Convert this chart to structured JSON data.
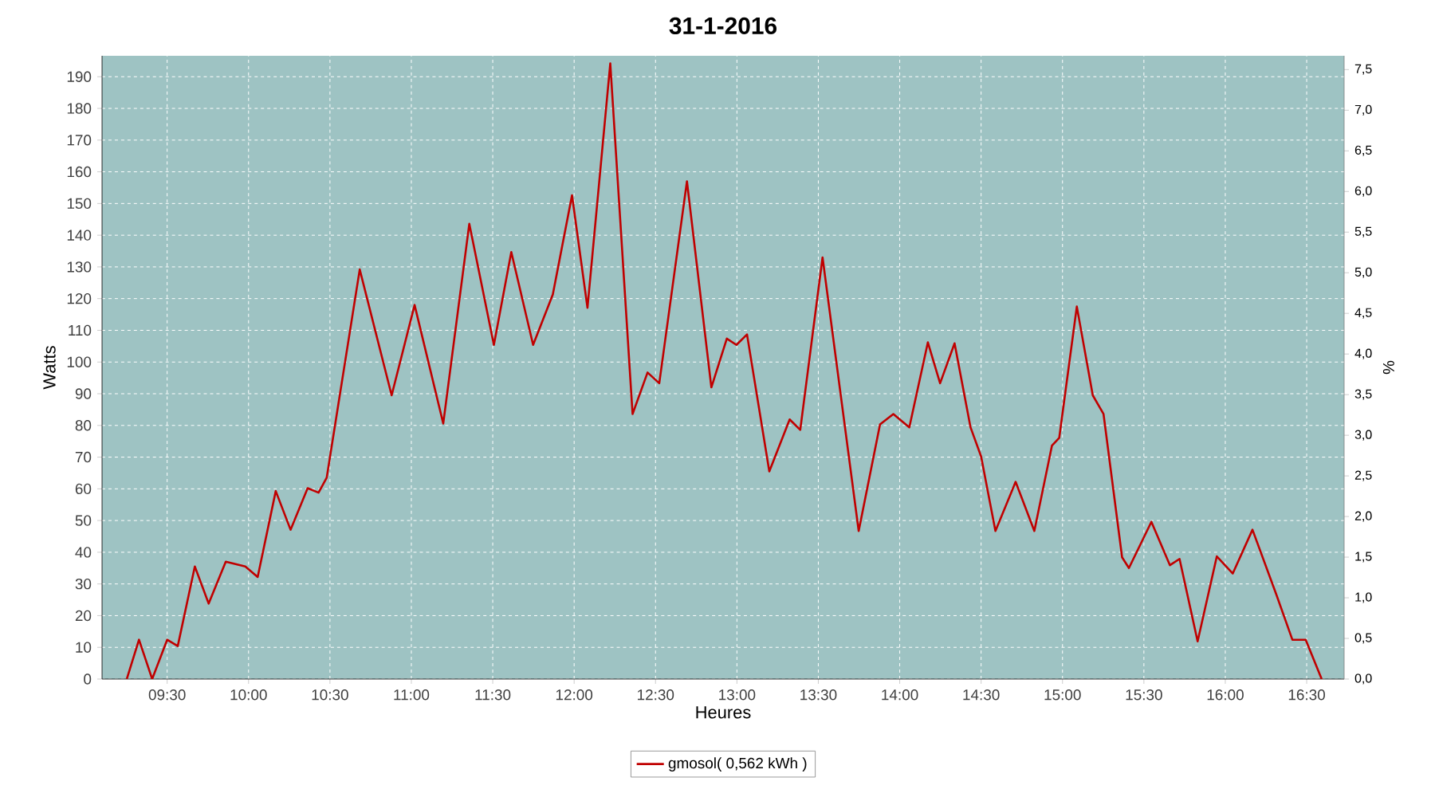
{
  "chart_data": {
    "type": "line",
    "title": "31-1-2016",
    "xlabel": "Heures",
    "ylabel": "Watts",
    "y2label": "%",
    "xlim": [
      9.1,
      16.73
    ],
    "ylim": [
      0,
      196.6
    ],
    "y2lim": [
      0,
      7.67
    ],
    "xticks": [
      {
        "value": 9.5,
        "label": "09:30"
      },
      {
        "value": 10,
        "label": "10:00"
      },
      {
        "value": 10.5,
        "label": "10:30"
      },
      {
        "value": 11,
        "label": "11:00"
      },
      {
        "value": 11.5,
        "label": "11:30"
      },
      {
        "value": 12,
        "label": "12:00"
      },
      {
        "value": 12.5,
        "label": "12:30"
      },
      {
        "value": 13,
        "label": "13:00"
      },
      {
        "value": 13.5,
        "label": "13:30"
      },
      {
        "value": 14,
        "label": "14:00"
      },
      {
        "value": 14.5,
        "label": "14:30"
      },
      {
        "value": 15,
        "label": "15:00"
      },
      {
        "value": 15.5,
        "label": "15:30"
      },
      {
        "value": 16,
        "label": "16:00"
      },
      {
        "value": 16.5,
        "label": "16:30"
      }
    ],
    "yticks": [
      0,
      10,
      20,
      30,
      40,
      50,
      60,
      70,
      80,
      90,
      100,
      110,
      120,
      130,
      140,
      150,
      160,
      170,
      180,
      190
    ],
    "y2ticks": [
      {
        "value": 0,
        "label": "0,0"
      },
      {
        "value": 0.5,
        "label": "0,5"
      },
      {
        "value": 1,
        "label": "1,0"
      },
      {
        "value": 1.5,
        "label": "1,5"
      },
      {
        "value": 2,
        "label": "2,0"
      },
      {
        "value": 2.5,
        "label": "2,5"
      },
      {
        "value": 3,
        "label": "3,0"
      },
      {
        "value": 3.5,
        "label": "3,5"
      },
      {
        "value": 4,
        "label": "4,0"
      },
      {
        "value": 4.5,
        "label": "4,5"
      },
      {
        "value": 5,
        "label": "5,0"
      },
      {
        "value": 5.5,
        "label": "5,5"
      },
      {
        "value": 6,
        "label": "6,0"
      },
      {
        "value": 6.5,
        "label": "6,5"
      },
      {
        "value": 7,
        "label": "7,0"
      },
      {
        "value": 7.5,
        "label": "7,5"
      }
    ],
    "grid": true,
    "legend": "bottom",
    "marker": "none",
    "line_style": "solid",
    "series": [
      {
        "name": "gmosol( 0,562 kWh )",
        "color": "#c00000",
        "x": [
          9.252,
          9.327,
          9.408,
          9.5,
          9.565,
          9.67,
          9.755,
          9.86,
          9.98,
          10.056,
          10.167,
          10.258,
          10.363,
          10.43,
          10.48,
          10.683,
          10.879,
          11.02,
          11.196,
          11.356,
          11.507,
          11.614,
          11.748,
          11.869,
          11.987,
          12.082,
          12.222,
          12.359,
          12.451,
          12.523,
          12.693,
          12.843,
          12.938,
          12.997,
          13.062,
          13.199,
          13.324,
          13.389,
          13.526,
          13.748,
          13.879,
          13.961,
          14.059,
          14.173,
          14.248,
          14.337,
          14.435,
          14.5,
          14.588,
          14.712,
          14.827,
          14.935,
          14.98,
          15.088,
          15.186,
          15.252,
          15.366,
          15.408,
          15.546,
          15.66,
          15.719,
          15.83,
          15.948,
          16.046,
          16.167,
          16.314,
          16.412,
          16.494,
          16.592
        ],
        "values": [
          0,
          12.4,
          0,
          12.4,
          10.4,
          35.5,
          23.8,
          37,
          35.5,
          32.2,
          59.3,
          47.1,
          60.2,
          58.8,
          63.5,
          129.2,
          89.5,
          118,
          80.6,
          143.6,
          105.4,
          134.7,
          105.4,
          121.3,
          152.6,
          117.1,
          194.2,
          83.6,
          96.7,
          93.3,
          157,
          92,
          107.4,
          105.4,
          108.7,
          65.5,
          81.9,
          78.6,
          133,
          46.7,
          80.3,
          83.6,
          79.4,
          106.2,
          93.3,
          105.9,
          79.4,
          70.2,
          46.7,
          62.2,
          46.7,
          73.6,
          76.1,
          117.5,
          89.5,
          83.6,
          38.4,
          35,
          49.6,
          35.9,
          37.9,
          11.9,
          38.7,
          33.3,
          47.1,
          26.6,
          12.4,
          12.4,
          0
        ]
      }
    ]
  }
}
